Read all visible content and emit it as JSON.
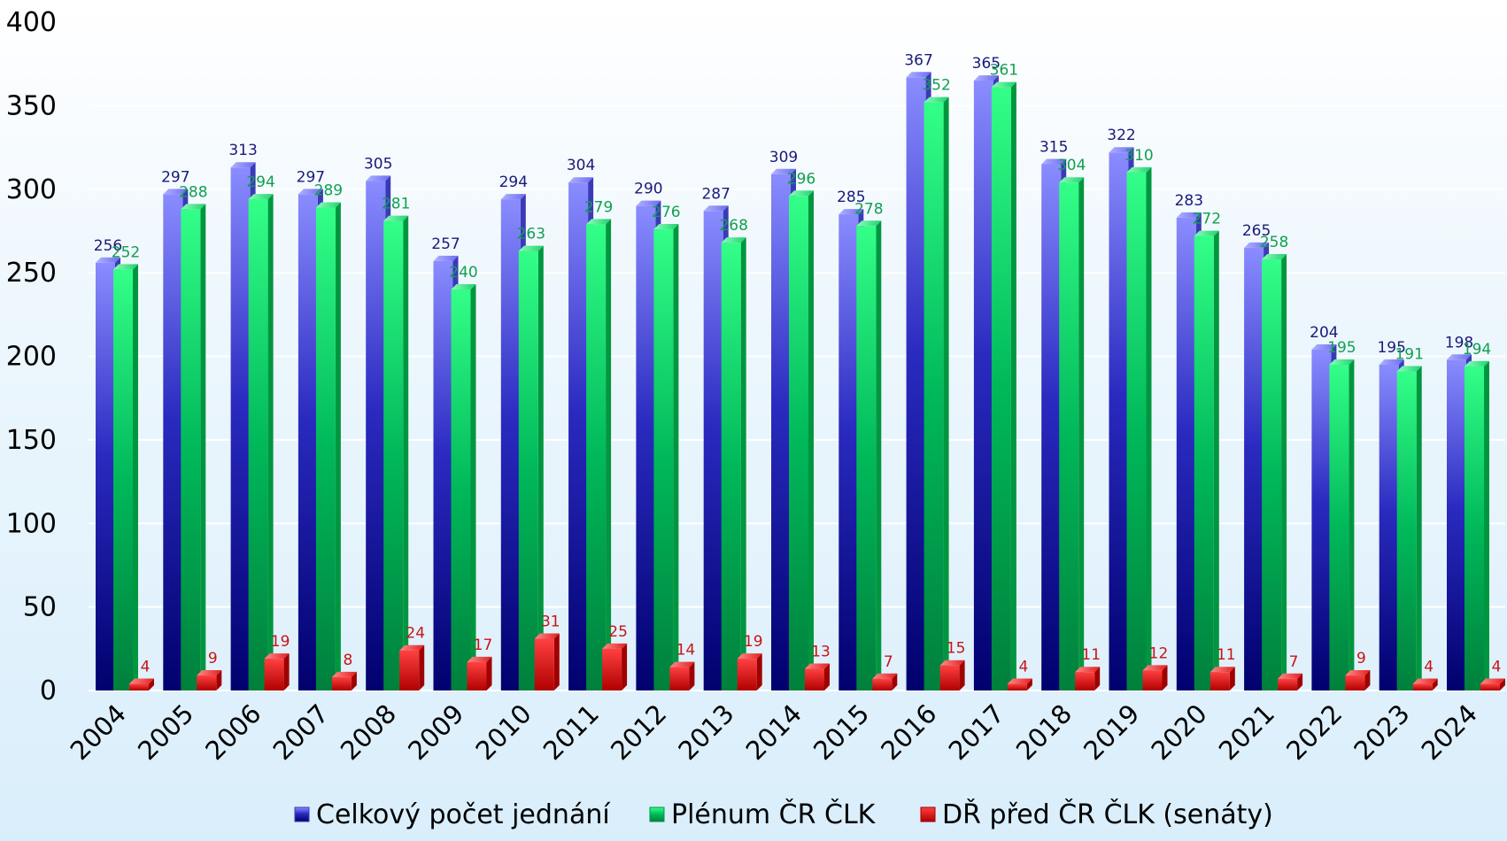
{
  "chart_data": {
    "type": "bar",
    "categories": [
      "2004",
      "2005",
      "2006",
      "2007",
      "2008",
      "2009",
      "2010",
      "2011",
      "2012",
      "2013",
      "2014",
      "2015",
      "2016",
      "2017",
      "2018",
      "2019",
      "2020",
      "2021",
      "2022",
      "2023",
      "2024"
    ],
    "series": [
      {
        "name": "Celkový počet jednání",
        "color": "#1a1a9e",
        "label_color": "#1a1a7a",
        "values": [
          256,
          297,
          313,
          297,
          305,
          257,
          294,
          304,
          290,
          287,
          309,
          285,
          367,
          365,
          315,
          322,
          283,
          265,
          204,
          195,
          198
        ]
      },
      {
        "name": "Plénum ČR ČLK",
        "color": "#00a651",
        "label_color": "#10a050",
        "values": [
          252,
          288,
          294,
          289,
          281,
          240,
          263,
          279,
          276,
          268,
          296,
          278,
          352,
          361,
          304,
          310,
          272,
          258,
          195,
          191,
          194
        ]
      },
      {
        "name": "DŘ před ČR ČLK (senáty)",
        "color": "#d41414",
        "label_color": "#c81414",
        "values": [
          4,
          9,
          19,
          8,
          24,
          17,
          31,
          25,
          14,
          19,
          13,
          7,
          15,
          4,
          11,
          12,
          11,
          7,
          9,
          4,
          4
        ]
      }
    ],
    "y_ticks": [
      "0",
      "50",
      "100",
      "150",
      "200",
      "250",
      "300",
      "350",
      "400"
    ],
    "ylim": [
      0,
      400
    ],
    "grid": true,
    "legend_position": "bottom"
  }
}
